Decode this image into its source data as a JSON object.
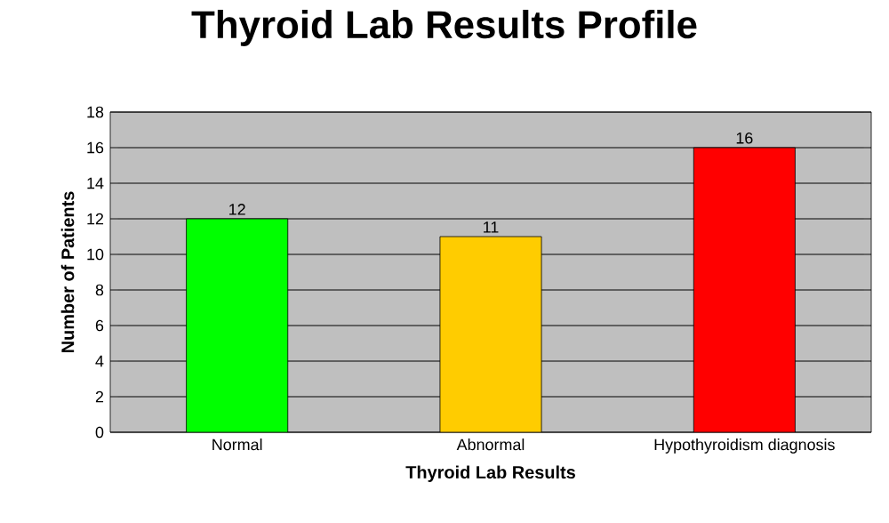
{
  "chart_data": {
    "type": "bar",
    "title": "Thyroid Lab Results Profile",
    "xlabel": "Thyroid Lab Results",
    "ylabel": "Number of Patients",
    "categories": [
      "Normal",
      "Abnormal",
      "Hypothyroidism diagnosis"
    ],
    "values": [
      12,
      11,
      16
    ],
    "colors": [
      "#00ff00",
      "#ffcc00",
      "#ff0000"
    ],
    "ylim": [
      0,
      18
    ],
    "yticks": [
      0,
      2,
      4,
      6,
      8,
      10,
      12,
      14,
      16,
      18
    ],
    "grid": "y",
    "data_labels": true
  }
}
